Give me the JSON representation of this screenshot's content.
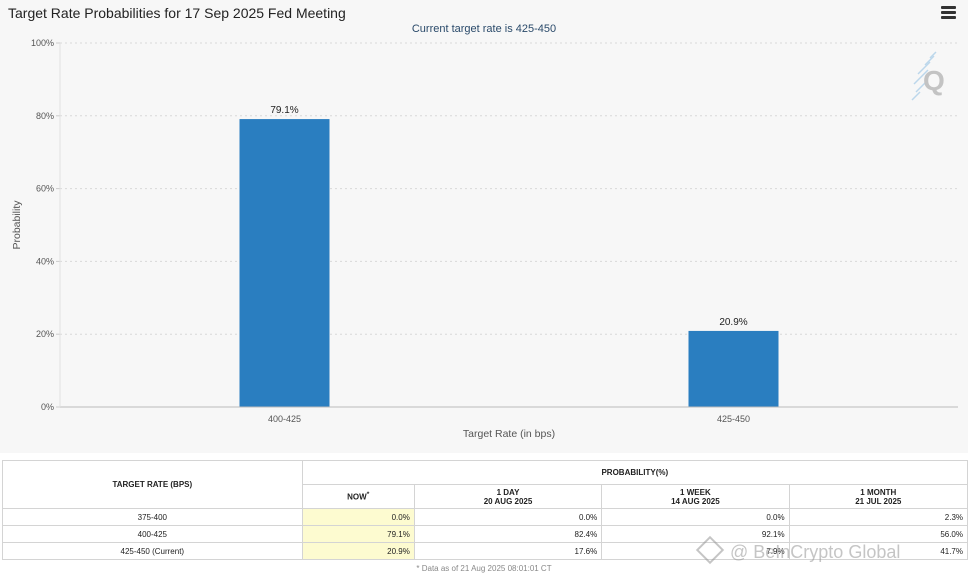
{
  "header": {
    "title": "Target Rate Probabilities for 17 Sep 2025 Fed Meeting",
    "subtitle": "Current target rate is 425-450"
  },
  "chart_data": {
    "type": "bar",
    "title": "Target Rate Probabilities for 17 Sep 2025 Fed Meeting",
    "subtitle": "Current target rate is 425-450",
    "xlabel": "Target Rate (in bps)",
    "ylabel": "Probability",
    "categories": [
      "400-425",
      "425-450"
    ],
    "values": [
      79.1,
      20.9
    ],
    "data_labels": [
      "79.1%",
      "20.9%"
    ],
    "ylim": [
      0,
      100
    ],
    "yticks": [
      "0%",
      "20%",
      "40%",
      "60%",
      "80%",
      "100%"
    ],
    "grid": true,
    "bar_color": "#2a7ec0"
  },
  "table": {
    "col_header_rate": "TARGET RATE (BPS)",
    "col_header_prob": "PROBABILITY(%)",
    "periods": [
      {
        "label": "NOW",
        "date": ""
      },
      {
        "label": "1 DAY",
        "date": "20 AUG 2025"
      },
      {
        "label": "1 WEEK",
        "date": "14 AUG 2025"
      },
      {
        "label": "1 MONTH",
        "date": "21 JUL 2025"
      }
    ],
    "now_marker": "*",
    "rows": [
      {
        "rate": "375-400",
        "values": [
          "0.0%",
          "0.0%",
          "0.0%",
          "2.3%"
        ]
      },
      {
        "rate": "400-425",
        "values": [
          "79.1%",
          "82.4%",
          "92.1%",
          "56.0%"
        ]
      },
      {
        "rate": "425-450 (Current)",
        "values": [
          "20.9%",
          "17.6%",
          "7.9%",
          "41.7%"
        ]
      }
    ],
    "footnote": "* Data as of 21 Aug 2025 08:01:01 CT"
  },
  "watermark": "@ BeInCrypto Global",
  "colors": {
    "bar": "#2a7ec0",
    "now_highlight": "#fdfbd0",
    "panel_bg": "#f7f7f7"
  }
}
